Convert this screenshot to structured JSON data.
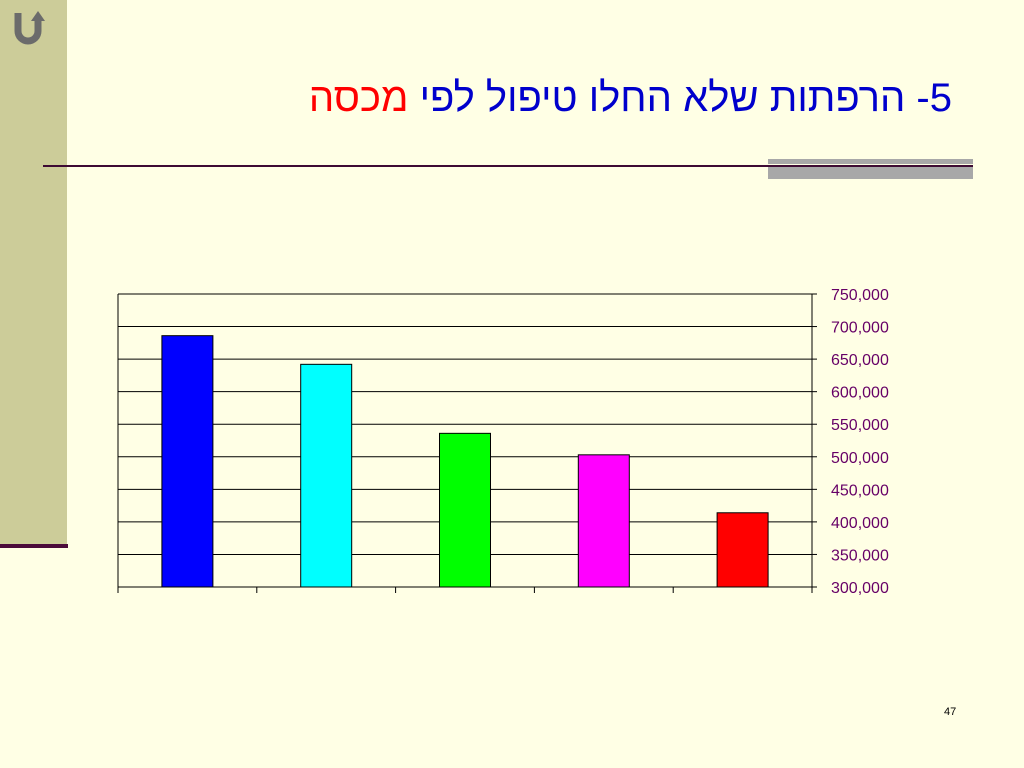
{
  "slide": {
    "title_main": "5- הרפתות שלא החלו טיפול לפי",
    "title_accent": "מכסה",
    "page_number": "47",
    "back_icon": "u-turn-back-icon"
  },
  "colors": {
    "background": "#FFFFE5",
    "left_band": "#CCCC99",
    "title": "#0000CC",
    "title_accent": "#FF0000",
    "axis_labels": "#660066"
  },
  "chart_data": {
    "type": "bar",
    "categories": [
      "",
      "",
      "",
      "",
      ""
    ],
    "values": [
      686000,
      642000,
      536000,
      503000,
      414000
    ],
    "bar_colors": [
      "#0000FF",
      "#00FFFF",
      "#00FF00",
      "#FF00FF",
      "#FF0000"
    ],
    "ylim": [
      300000,
      750000
    ],
    "yticks": [
      300000,
      350000,
      400000,
      450000,
      500000,
      550000,
      600000,
      650000,
      700000,
      750000
    ],
    "ytick_labels": [
      "300,000",
      "350,000",
      "400,000",
      "450,000",
      "500,000",
      "550,000",
      "600,000",
      "650,000",
      "700,000",
      "750,000"
    ],
    "y_axis_side": "right",
    "grid": true,
    "legend": false
  }
}
